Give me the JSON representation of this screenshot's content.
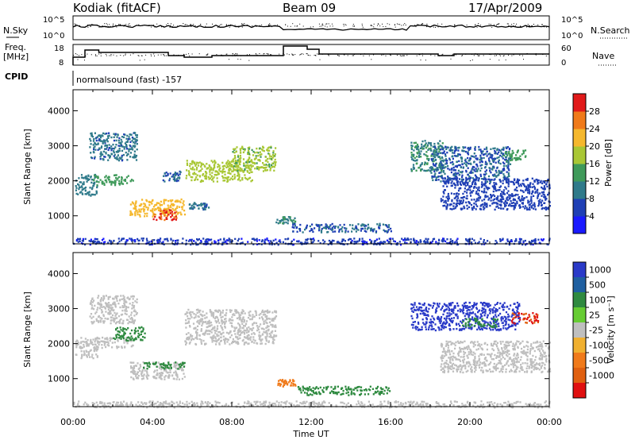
{
  "header": {
    "station": "Kodiak (fitACF)",
    "beam": "Beam 09",
    "date": "17/Apr/2009"
  },
  "top_panels": {
    "nsky_label": "N.Sky",
    "nsearch_label": "N.Search",
    "nsky_ticks": [
      "10^5",
      "10^0"
    ],
    "nsearch_ticks": [
      "10^5",
      "10^0"
    ],
    "freq_label_1": "Freq.",
    "freq_label_2": "[MHz]",
    "freq_ticks": [
      "18",
      "8"
    ],
    "nave_label": "Nave",
    "nave_ticks": [
      "60",
      "0"
    ],
    "cpid_label": "CPID",
    "cpid_value": "normalsound (fast) -157"
  },
  "colors": {
    "power": [
      "#1a1aff",
      "#1f3fb5",
      "#2f7a8a",
      "#3f9a5a",
      "#a9c735",
      "#f5b82e",
      "#f07a1a",
      "#e11a1a"
    ],
    "velocity": [
      "#2a3ac8",
      "#1f5fa0",
      "#2f8a40",
      "#66cc33",
      "#bfbfbf",
      "#bfbfbf",
      "#f0b030",
      "#f07a1a",
      "#e06010",
      "#e01010"
    ]
  },
  "chart_data": [
    {
      "type": "heatmap",
      "name": "power",
      "ylabel": "Slant Range [km]",
      "ylim": [
        200,
        4600
      ],
      "yticks": [
        "1000",
        "2000",
        "3000",
        "4000"
      ],
      "xlim": [
        0,
        24
      ],
      "colorbar_label": "Power [dB]",
      "colorbar_ticks": [
        "4",
        "8",
        "12",
        "16",
        "20",
        "24",
        "28"
      ],
      "colorbar_range": [
        0,
        32
      ],
      "regions": [
        {
          "t0": 0.1,
          "t1": 1.2,
          "r0": 1600,
          "r1": 2200,
          "v": 10
        },
        {
          "t0": 1.0,
          "t1": 3.0,
          "r0": 1900,
          "r1": 2200,
          "v": 14
        },
        {
          "t0": 0.8,
          "t1": 3.2,
          "r0": 2600,
          "r1": 3400,
          "v": 9
        },
        {
          "t0": 2.8,
          "t1": 5.6,
          "r0": 1000,
          "r1": 1500,
          "v": 22
        },
        {
          "t0": 4.0,
          "t1": 5.2,
          "r0": 900,
          "r1": 1200,
          "v": 28
        },
        {
          "t0": 5.8,
          "t1": 6.8,
          "r0": 1200,
          "r1": 1400,
          "v": 9
        },
        {
          "t0": 4.5,
          "t1": 5.4,
          "r0": 2000,
          "r1": 2300,
          "v": 8
        },
        {
          "t0": 5.6,
          "t1": 9.0,
          "r0": 2000,
          "r1": 2600,
          "v": 18
        },
        {
          "t0": 8.0,
          "t1": 10.2,
          "r0": 2300,
          "r1": 3000,
          "v": 17
        },
        {
          "t0": 10.2,
          "t1": 11.2,
          "r0": 800,
          "r1": 1000,
          "v": 12
        },
        {
          "t0": 11.0,
          "t1": 16.0,
          "r0": 550,
          "r1": 800,
          "v": 8
        },
        {
          "t0": 17.0,
          "t1": 18.6,
          "r0": 2300,
          "r1": 3200,
          "v": 12
        },
        {
          "t0": 18.0,
          "t1": 22.0,
          "r0": 2000,
          "r1": 3000,
          "v": 8
        },
        {
          "t0": 18.5,
          "t1": 24.0,
          "r0": 1200,
          "r1": 2100,
          "v": 6
        },
        {
          "t0": 21.6,
          "t1": 22.8,
          "r0": 2600,
          "r1": 2900,
          "v": 14
        },
        {
          "t0": 0.0,
          "t1": 24.0,
          "r0": 200,
          "r1": 380,
          "v": 5
        }
      ]
    },
    {
      "type": "heatmap",
      "name": "velocity",
      "ylabel": "Slant Range [km]",
      "ylim": [
        200,
        4600
      ],
      "yticks": [
        "1000",
        "2000",
        "3000",
        "4000"
      ],
      "xlim": [
        0,
        24
      ],
      "xticks": [
        "00:00",
        "04:00",
        "08:00",
        "12:00",
        "16:00",
        "20:00",
        "00:00"
      ],
      "xlabel": "Time UT",
      "colorbar_label": "Velocity [m s⁻¹]",
      "colorbar_ticks": [
        "1000",
        "500",
        "100",
        "25",
        "-25",
        "-100",
        "-500",
        "-1000"
      ],
      "regions": [
        {
          "t0": 0.1,
          "t1": 1.2,
          "r0": 1600,
          "r1": 2200,
          "v": 25
        },
        {
          "t0": 1.0,
          "t1": 3.0,
          "r0": 1900,
          "r1": 2200,
          "v": 0
        },
        {
          "t0": 0.8,
          "t1": 3.2,
          "r0": 2600,
          "r1": 3400,
          "v": 0
        },
        {
          "t0": 2.8,
          "t1": 5.6,
          "r0": 1000,
          "r1": 1500,
          "v": 0
        },
        {
          "t0": 3.4,
          "t1": 5.6,
          "r0": 1300,
          "r1": 1500,
          "v": 120
        },
        {
          "t0": 2.0,
          "t1": 3.6,
          "r0": 2100,
          "r1": 2500,
          "v": 120
        },
        {
          "t0": 5.6,
          "t1": 10.2,
          "r0": 2000,
          "r1": 3000,
          "v": 0
        },
        {
          "t0": 10.2,
          "t1": 11.2,
          "r0": 800,
          "r1": 1000,
          "v": -300
        },
        {
          "t0": 11.2,
          "t1": 16.0,
          "r0": 550,
          "r1": 800,
          "v": 120
        },
        {
          "t0": 17.0,
          "t1": 22.5,
          "r0": 2400,
          "r1": 3200,
          "v": 800
        },
        {
          "t0": 19.6,
          "t1": 21.4,
          "r0": 2500,
          "r1": 2750,
          "v": 120
        },
        {
          "t0": 22.0,
          "t1": 23.4,
          "r0": 2600,
          "r1": 2900,
          "v": -800
        },
        {
          "t0": 18.5,
          "t1": 24.0,
          "r0": 1200,
          "r1": 2100,
          "v": 0
        },
        {
          "t0": 0.0,
          "t1": 24.0,
          "r0": 200,
          "r1": 380,
          "v": 0
        }
      ]
    }
  ]
}
